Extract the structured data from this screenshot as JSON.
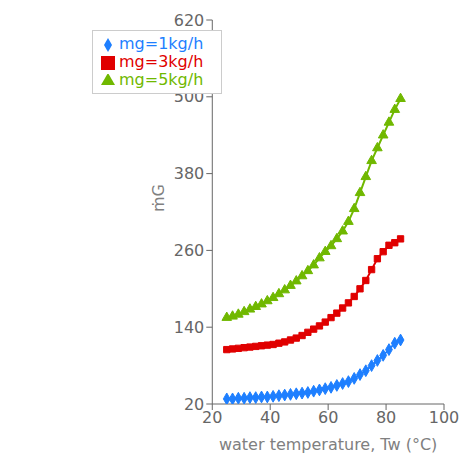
{
  "chart_data": {
    "type": "line",
    "xlabel": "water temperature, Tw (°C)",
    "ylabel": "ṁG",
    "x": [
      25,
      27,
      29,
      31,
      33,
      35,
      37,
      39,
      41,
      43,
      45,
      47,
      49,
      51,
      53,
      55,
      57,
      59,
      61,
      63,
      65,
      67,
      69,
      71,
      73,
      75,
      77,
      79,
      81,
      83,
      85
    ],
    "xlim": [
      20,
      100
    ],
    "xticks": [
      20,
      40,
      60,
      80,
      100
    ],
    "ylim": [
      20,
      620
    ],
    "yticks": [
      20,
      140,
      260,
      380,
      500,
      620
    ],
    "series": [
      {
        "name": "mg=1kg/h",
        "color": "#1e7fff",
        "marker": "diamond",
        "values": [
          28,
          28,
          29,
          29,
          30,
          30,
          31,
          31,
          32,
          33,
          34,
          35,
          36,
          37,
          38,
          40,
          42,
          44,
          46,
          49,
          52,
          55,
          60,
          66,
          72,
          80,
          88,
          96,
          105,
          115,
          120
        ]
      },
      {
        "name": "mg=3kg/h",
        "color": "#e00000",
        "marker": "square",
        "values": [
          105,
          106,
          107,
          108,
          109,
          110,
          111,
          112,
          113,
          115,
          117,
          120,
          123,
          127,
          132,
          137,
          142,
          148,
          155,
          162,
          170,
          178,
          188,
          200,
          213,
          230,
          247,
          258,
          268,
          272,
          278
        ]
      },
      {
        "name": "mg=5kg/h",
        "color": "#70b800",
        "marker": "triangle",
        "values": [
          155,
          157,
          160,
          164,
          168,
          172,
          176,
          181,
          186,
          192,
          198,
          205,
          212,
          220,
          228,
          237,
          248,
          258,
          267,
          278,
          290,
          305,
          325,
          350,
          375,
          400,
          420,
          440,
          460,
          480,
          497
        ]
      }
    ],
    "legend": "upper left",
    "grid": false
  }
}
